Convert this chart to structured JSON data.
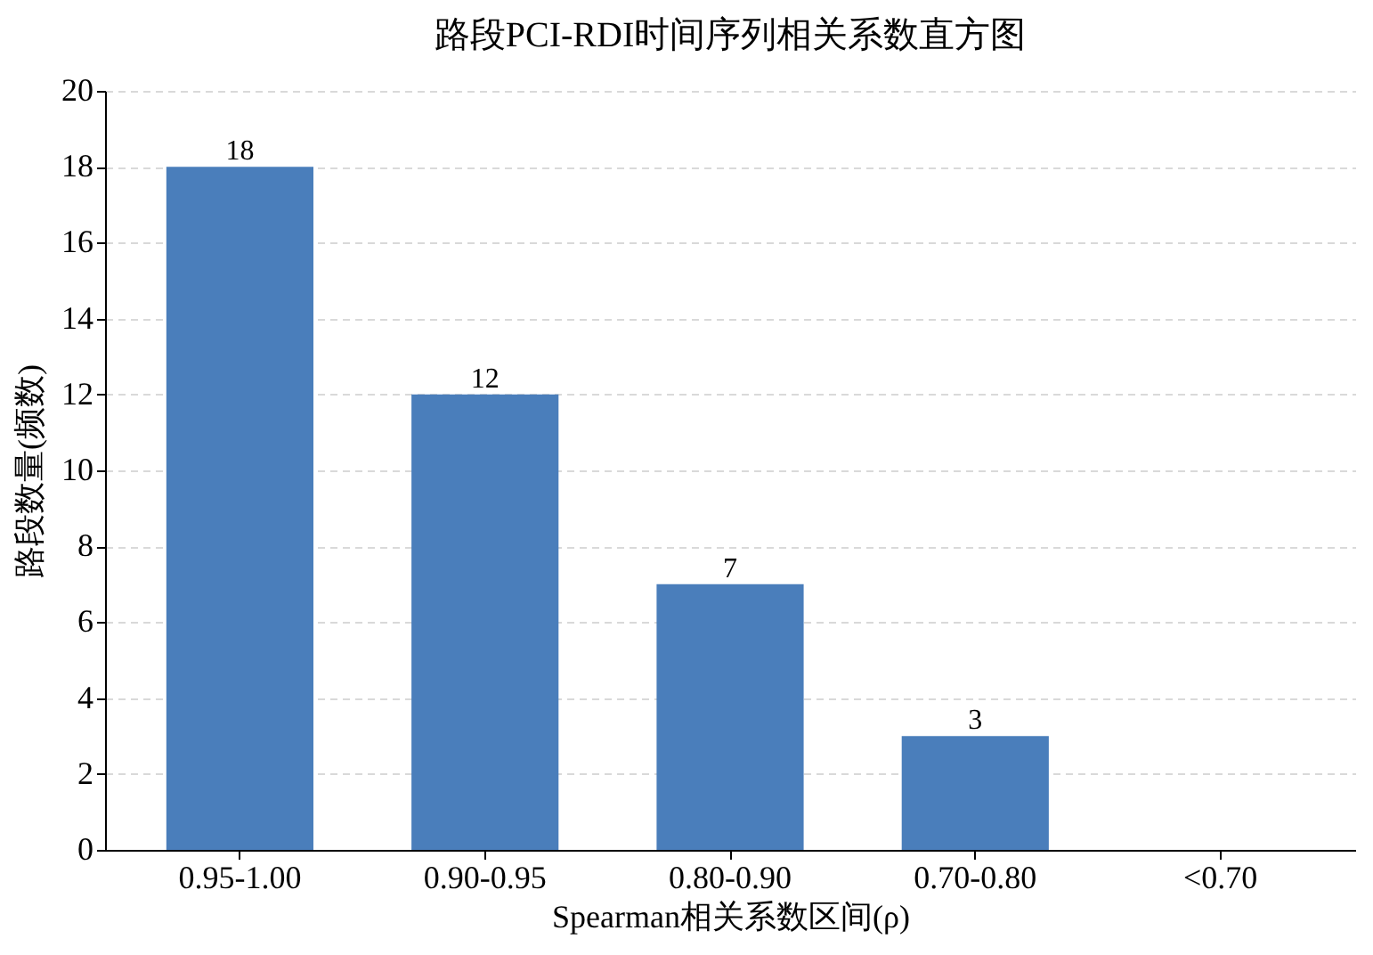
{
  "chart_data": {
    "type": "bar",
    "title": "路段PCI-RDI时间序列相关系数直方图",
    "xlabel": "Spearman相关系数区间(ρ)",
    "ylabel": "路段数量(频数)",
    "categories": [
      "0.95-1.00",
      "0.90-0.95",
      "0.80-0.90",
      "0.70-0.80",
      "<0.70"
    ],
    "values": [
      18,
      12,
      7,
      3,
      0
    ],
    "value_labels": [
      "18",
      "12",
      "7",
      "3",
      null
    ],
    "color": "#4a7ebb",
    "ylim": [
      0,
      20
    ],
    "yticks": [
      0,
      2,
      4,
      6,
      8,
      10,
      12,
      14,
      16,
      18,
      20
    ],
    "grid": "y"
  }
}
